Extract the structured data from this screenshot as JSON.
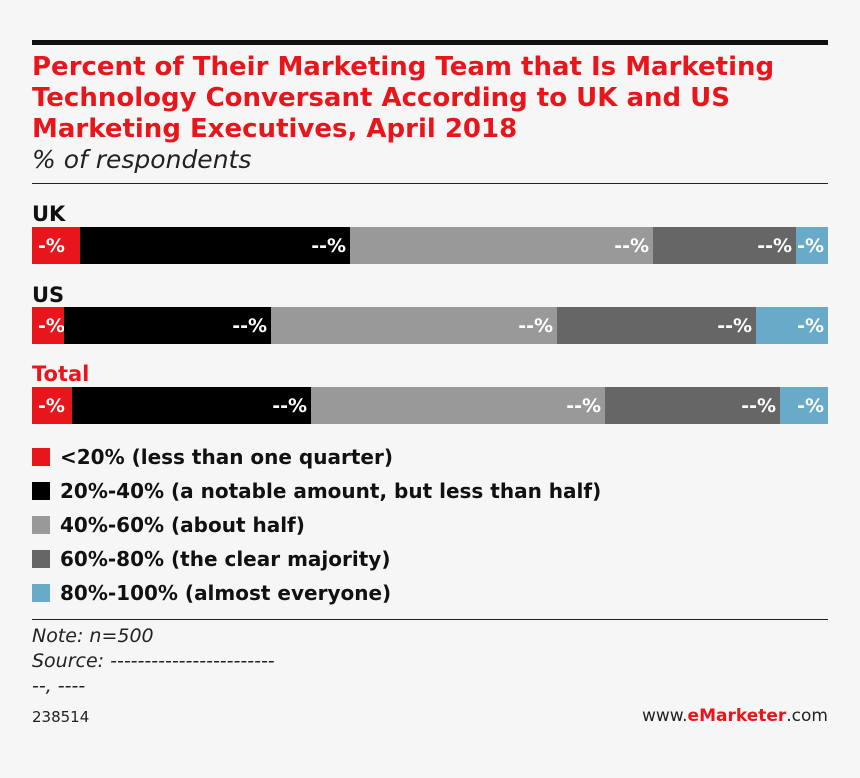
{
  "chart_data": {
    "type": "bar",
    "orientation": "horizontal",
    "stacked": true,
    "title": "Percent of Their Marketing Team that Is Marketing Technology Conversant According to UK and US Marketing Executives, April 2018",
    "subtitle": "% of respondents",
    "categories": [
      "UK",
      "US",
      "Total"
    ],
    "series": [
      {
        "name": "<20% (less than one quarter)",
        "color": "#e8151b",
        "values": [
          6,
          4,
          5
        ],
        "labels": [
          "-%",
          "-%",
          "-%"
        ]
      },
      {
        "name": "20%-40% (a notable amount, but less than half)",
        "color": "#000000",
        "values": [
          34,
          26,
          30
        ],
        "labels": [
          "--%",
          "--%",
          "--%"
        ]
      },
      {
        "name": "40%-60% (about half)",
        "color": "#999999",
        "values": [
          38,
          36,
          37
        ],
        "labels": [
          "--%",
          "--%",
          "--%"
        ]
      },
      {
        "name": "60%-80% (the clear majority)",
        "color": "#666666",
        "values": [
          18,
          25,
          22
        ],
        "labels": [
          "--%",
          "--%",
          "--%"
        ]
      },
      {
        "name": "80%-100% (almost everyone)",
        "color": "#6aaac9",
        "values": [
          4,
          9,
          6
        ],
        "labels": [
          "-%",
          "-%",
          "-%"
        ]
      }
    ],
    "xlim": [
      0,
      100
    ]
  },
  "footer": {
    "note": "Note: n=500",
    "source": "Source: ------------------------",
    "source2": "--, ----",
    "chart_id": "238514",
    "brand_prefix": "www.",
    "brand_name": "eMarketer",
    "brand_suffix": ".com"
  }
}
